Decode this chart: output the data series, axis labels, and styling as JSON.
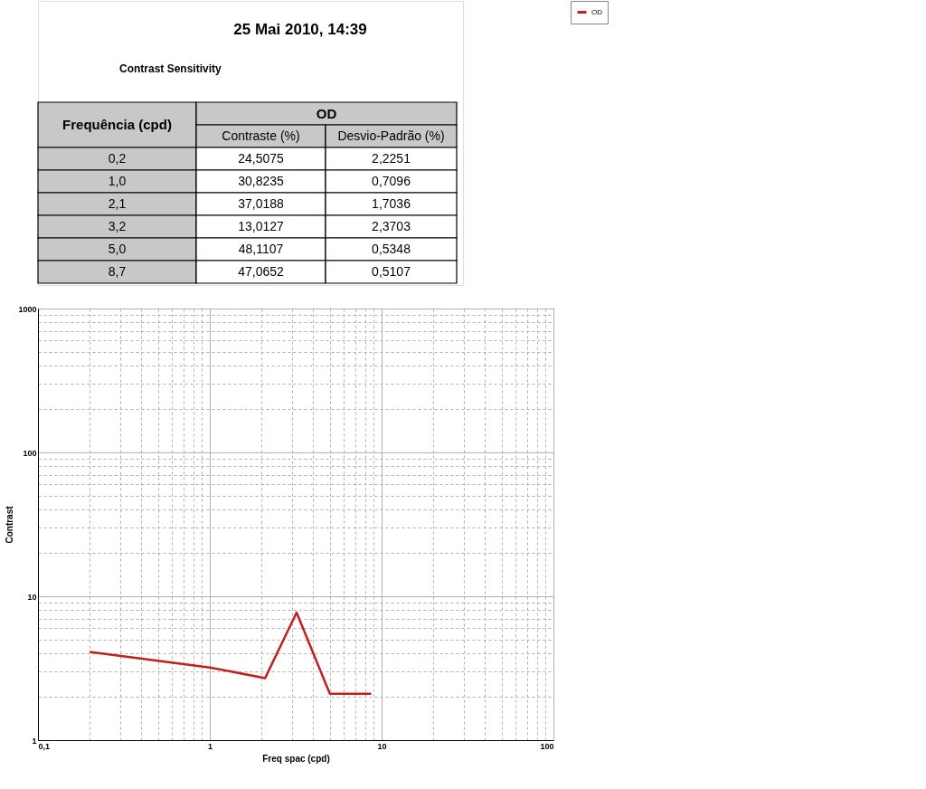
{
  "chart_data": [
    {
      "type": "other",
      "title": "25 Mai 2010, 14:39",
      "subtitle": "Contrast Sensitivity",
      "annotations": [
        "Frequência (cpd)",
        "OD",
        "Contraste (%)",
        "Desvio-Padrão (%)",
        "0,2",
        "24,5075",
        "2,2251",
        "1,0",
        "30,8235",
        "0,7096",
        "2,1",
        "37,0188",
        "1,7036",
        "3,2",
        "13,0127",
        "2,3703",
        "5,0",
        "48,1107",
        "0,5348",
        "8,7",
        "47,0652",
        "0,5107"
      ]
    },
    {
      "type": "line",
      "xlabel": "Freq spac (cpd)",
      "ylabel": "Contrast",
      "log": "xy",
      "grid": true,
      "legend": "top right",
      "marker": "none",
      "line_style": "solid",
      "xlim": [
        0.1,
        100
      ],
      "ylim": [
        1,
        1000
      ],
      "xticks": [
        {
          "value": 0.1,
          "label": "0,1"
        },
        {
          "value": 0.2,
          "label": null
        },
        {
          "value": 0.3,
          "label": null
        },
        {
          "value": 0.4,
          "label": null
        },
        {
          "value": 0.5,
          "label": null
        },
        {
          "value": 0.6,
          "label": null
        },
        {
          "value": 0.7,
          "label": null
        },
        {
          "value": 0.8,
          "label": null
        },
        {
          "value": 0.9,
          "label": null
        },
        1,
        {
          "value": 2,
          "label": null
        },
        {
          "value": 3,
          "label": null
        },
        {
          "value": 4,
          "label": null
        },
        {
          "value": 5,
          "label": null
        },
        {
          "value": 6,
          "label": null
        },
        {
          "value": 7,
          "label": null
        },
        {
          "value": 8,
          "label": null
        },
        {
          "value": 9,
          "label": null
        },
        10,
        {
          "value": 20,
          "label": null
        },
        {
          "value": 30,
          "label": null
        },
        {
          "value": 40,
          "label": null
        },
        {
          "value": 50,
          "label": null
        },
        {
          "value": 60,
          "label": null
        },
        {
          "value": 70,
          "label": null
        },
        {
          "value": 80,
          "label": null
        },
        {
          "value": 90,
          "label": null
        },
        100
      ],
      "yticks": [
        1,
        {
          "value": 2,
          "label": null
        },
        {
          "value": 3,
          "label": null
        },
        {
          "value": 4,
          "label": null
        },
        {
          "value": 5,
          "label": null
        },
        {
          "value": 6,
          "label": null
        },
        {
          "value": 7,
          "label": null
        },
        {
          "value": 8,
          "label": null
        },
        {
          "value": 9,
          "label": null
        },
        10,
        {
          "value": 20,
          "label": null
        },
        {
          "value": 30,
          "label": null
        },
        {
          "value": 40,
          "label": null
        },
        {
          "value": 50,
          "label": null
        },
        {
          "value": 60,
          "label": null
        },
        {
          "value": 70,
          "label": null
        },
        {
          "value": 80,
          "label": null
        },
        {
          "value": 90,
          "label": null
        },
        100,
        {
          "value": 200,
          "label": null
        },
        {
          "value": 300,
          "label": null
        },
        {
          "value": 400,
          "label": null
        },
        {
          "value": 500,
          "label": null
        },
        {
          "value": 600,
          "label": null
        },
        {
          "value": 700,
          "label": null
        },
        {
          "value": 800,
          "label": null
        },
        {
          "value": 900,
          "label": null
        },
        1000
      ],
      "x": [
        0.2,
        1.0,
        2.1,
        3.2,
        5.0,
        8.7
      ],
      "series": [
        {
          "name": "OD",
          "color": "#c0201e",
          "values": [
            4.1,
            3.2,
            2.7,
            7.7,
            2.1,
            2.1
          ]
        }
      ]
    }
  ]
}
